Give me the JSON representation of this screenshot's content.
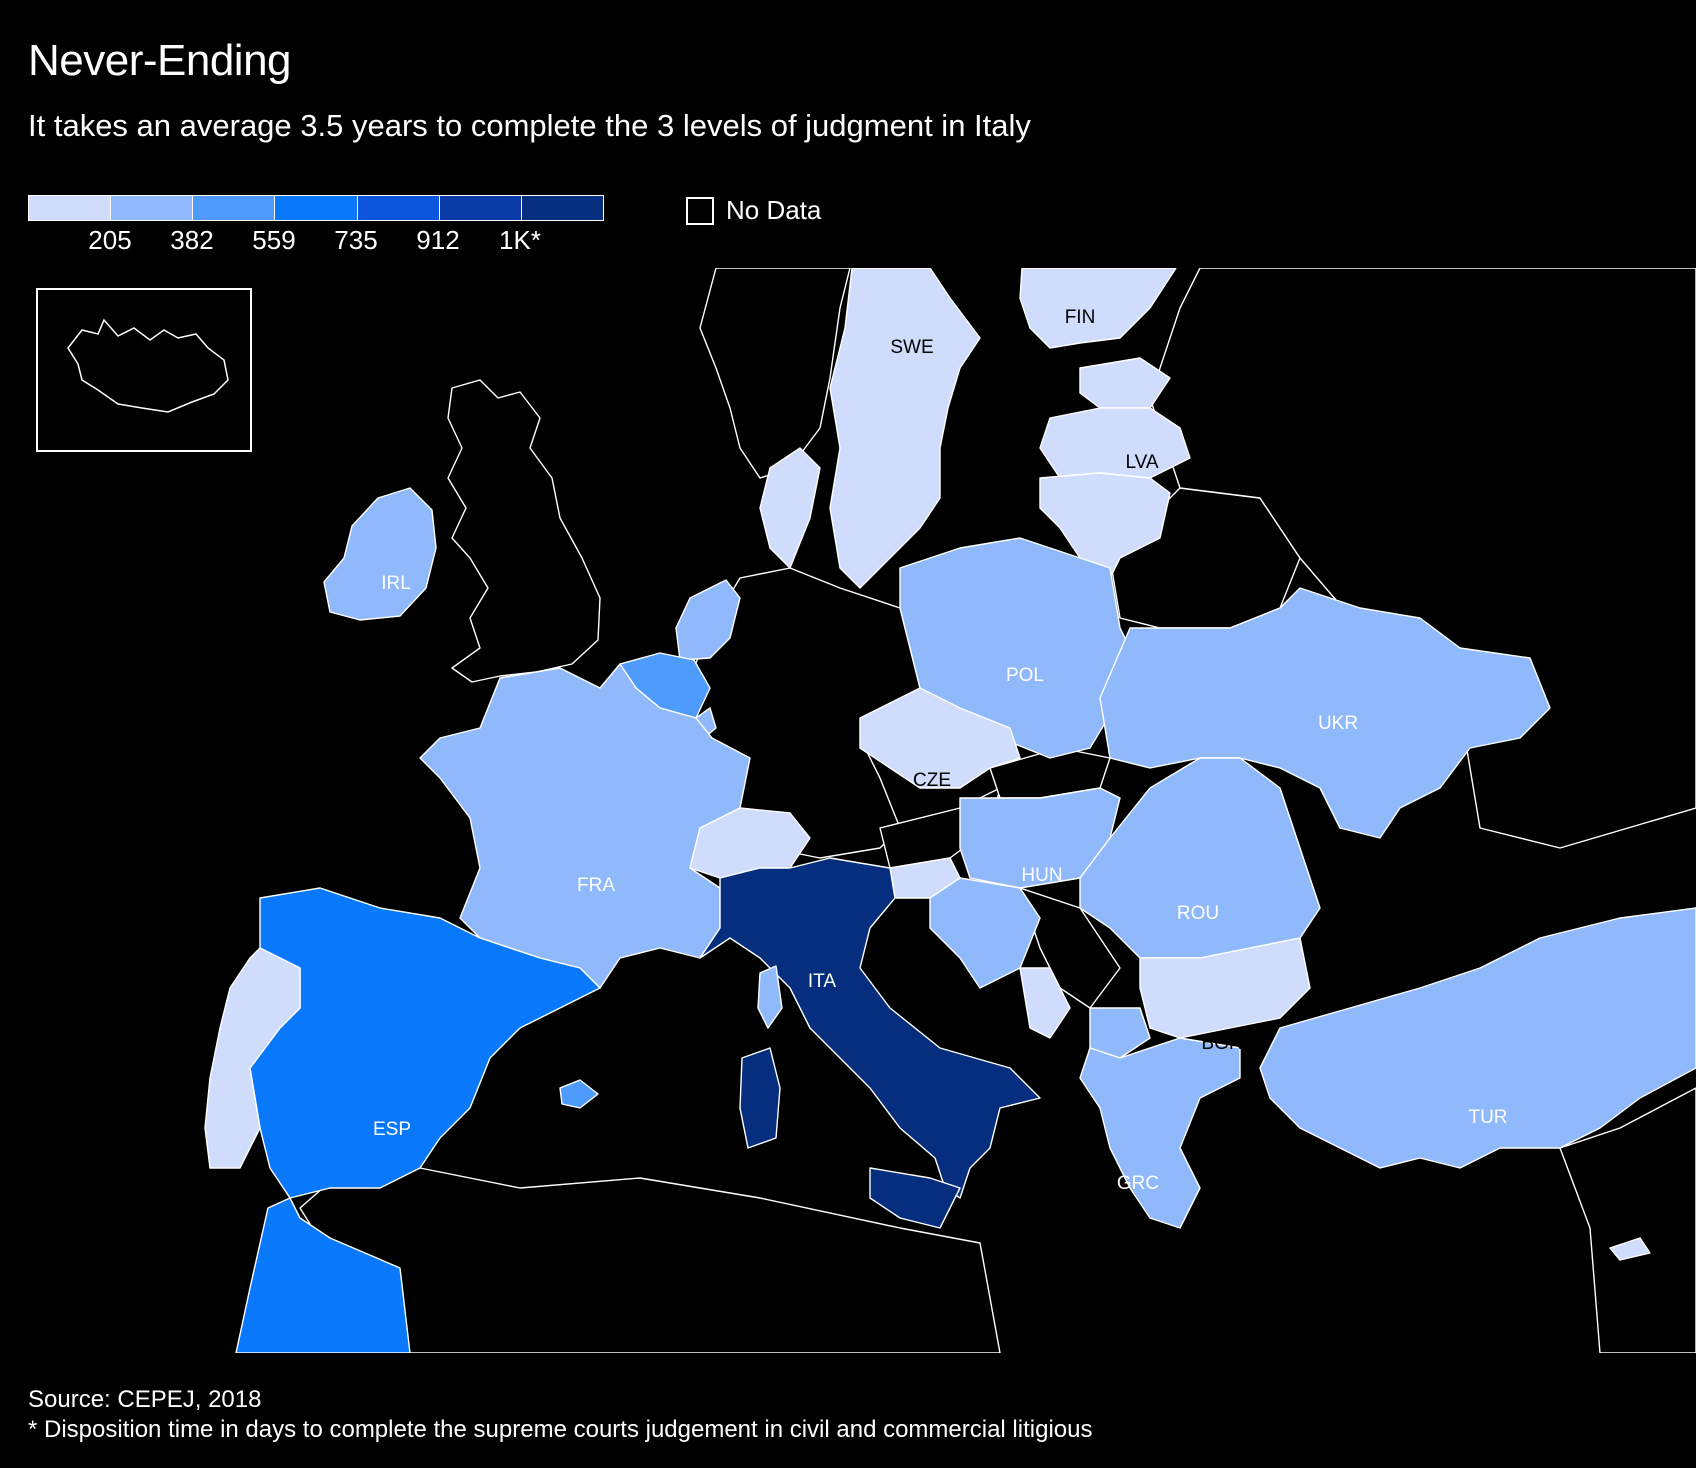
{
  "header": {
    "title": "Never-Ending",
    "subtitle": "It takes an average 3.5 years to complete the 3 levels of judgment in Italy"
  },
  "legend": {
    "colors": [
      "#cfdcfb",
      "#8fb9fb",
      "#4f9bfb",
      "#0a78fb",
      "#0a55dc",
      "#0a3aa5",
      "#062e7e"
    ],
    "ticks": [
      "205",
      "382",
      "559",
      "735",
      "912",
      "1K*"
    ],
    "nodata_label": "No Data"
  },
  "colors": {
    "background": "#000000",
    "outline": "#ffffff"
  },
  "countries": [
    {
      "code": "SWE",
      "bin": 0,
      "label_color": "#000000"
    },
    {
      "code": "FIN",
      "bin": 0,
      "label_color": "#000000"
    },
    {
      "code": "LVA",
      "bin": 0,
      "label_color": "#000000"
    },
    {
      "code": "IRL",
      "bin": 1,
      "label_color": "#ffffff"
    },
    {
      "code": "POL",
      "bin": 1,
      "label_color": "#ffffff"
    },
    {
      "code": "UKR",
      "bin": 1,
      "label_color": "#ffffff"
    },
    {
      "code": "CZE",
      "bin": 0,
      "label_color": "#000000"
    },
    {
      "code": "FRA",
      "bin": 1,
      "label_color": "#ffffff"
    },
    {
      "code": "HUN",
      "bin": 1,
      "label_color": "#ffffff"
    },
    {
      "code": "ROU",
      "bin": 1,
      "label_color": "#ffffff"
    },
    {
      "code": "ITA",
      "bin": 6,
      "label_color": "#ffffff"
    },
    {
      "code": "BGR",
      "bin": 0,
      "label_color": "#000000"
    },
    {
      "code": "ESP",
      "bin": 3,
      "label_color": "#ffffff"
    },
    {
      "code": "TUR",
      "bin": 1,
      "label_color": "#ffffff"
    },
    {
      "code": "GRC",
      "bin": 1,
      "label_color": "#ffffff"
    }
  ],
  "footer": {
    "source": "Source: CEPEJ, 2018",
    "footnote": "* Disposition time in days to complete the supreme courts judgement in civil and commercial litigious"
  }
}
